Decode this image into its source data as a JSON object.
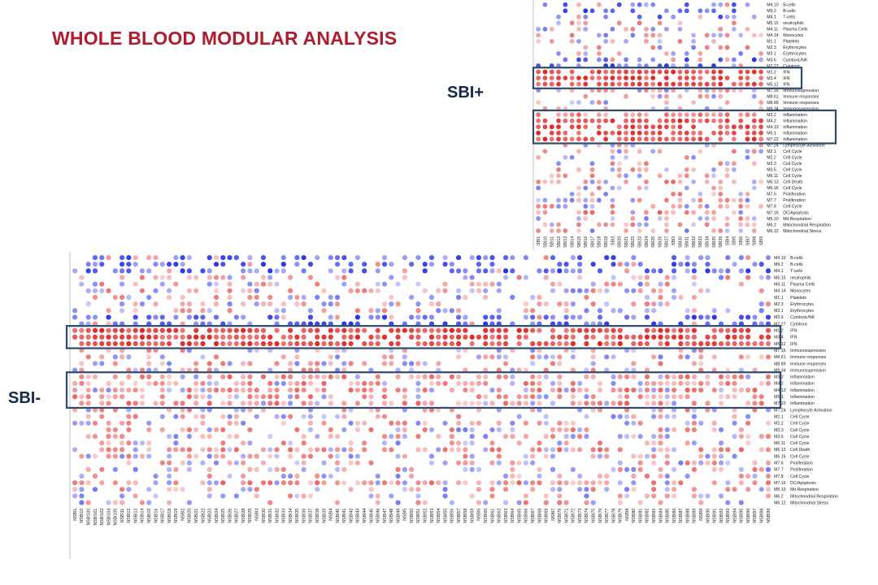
{
  "title": "WHOLE BLOOD MODULAR ANALYSIS",
  "sbi_plus_label": "SBI+",
  "sbi_minus_label": "SBI-",
  "colors": {
    "title": "#b01c2e",
    "label": "#16294a",
    "highlight_box": "#2f4a6e",
    "up": "#e03030",
    "down": "#3344dd"
  },
  "chart_data": [
    {
      "type": "heatmap",
      "name": "SBI+",
      "modules": [
        "M4.10",
        "M9.2",
        "M4.1",
        "M5.15",
        "M4.11",
        "M4.14",
        "M1.1",
        "M2.3",
        "M3.1",
        "M3.6",
        "M7.27",
        "M1.2",
        "M3.4",
        "M5.12",
        "M7.16",
        "M8.61",
        "M8.89",
        "M9.34",
        "M3.2",
        "M4.2",
        "M4.13",
        "M5.1",
        "M7.22",
        "M7.24",
        "M2.1",
        "M2.2",
        "M3.3",
        "M3.5",
        "M6.11",
        "M6.13",
        "M6.16",
        "M7.6",
        "M7.7",
        "M7.8",
        "M7.16",
        "M5.10",
        "M6.2",
        "M6.12"
      ],
      "functions": [
        "B-cells",
        "B-cells",
        "T-cells",
        "neutrophils",
        "Plasma Cells",
        "Monocytes",
        "Platelets",
        "Erythrocytes",
        "Erythrocytes",
        "Cytotoxic/NK",
        "Cytotoxic",
        "IFN",
        "IFN",
        "IFN",
        "Immunosupression",
        "Immune responses",
        "Immune responses",
        "Immunosupression",
        "Inflammation",
        "Inflammation",
        "Inflammation",
        "Inflammation",
        "Inflammation",
        "Lymphocyte Activation",
        "Cell Cycle",
        "Cell Cycle",
        "Cell Cycle",
        "Cell Cycle",
        "Cell Cycle",
        "Cell Death",
        "Cell Cycle",
        "Proliferation",
        "Proliferation",
        "Cell Cycle",
        "DC/Apoptosis",
        "Mit Respiration",
        "Mitochondrial Respiration",
        "Mitochondrial Stress"
      ],
      "samples": [
        "SBI1",
        "SBI10",
        "SBI11",
        "SBI12",
        "SBI13",
        "SBI14",
        "SBI15",
        "SBI16",
        "SBI17",
        "SBI18",
        "SBI19",
        "SBI2",
        "SBI20",
        "SBI21",
        "SBI22",
        "SBI23",
        "SBI24",
        "SBI25",
        "SBI26",
        "SBI27",
        "SBI3",
        "SBI30",
        "SBI31",
        "SBI32",
        "SBI33",
        "SBI34",
        "SBI35",
        "SBI36",
        "SBI4",
        "SBI5",
        "SBI6",
        "SBI7",
        "SBI8",
        "SBI9"
      ],
      "highlighted_groups": [
        "IFN",
        "Inflammation"
      ],
      "scale": "red = over-expressed, blue = under-expressed, white = no change"
    },
    {
      "type": "heatmap",
      "name": "SBI-",
      "modules": [
        "M4.10",
        "M9.2",
        "M4.1",
        "M5.15",
        "M4.11",
        "M4.14",
        "M1.1",
        "M2.3",
        "M3.1",
        "M3.6",
        "M7.27",
        "M1.2",
        "M3.4",
        "M5.12",
        "M7.16",
        "M8.61",
        "M8.89",
        "M9.34",
        "M3.2",
        "M4.2",
        "M4.13",
        "M5.1",
        "M7.22",
        "M7.24",
        "M2.1",
        "M2.2",
        "M3.3",
        "M3.5",
        "M6.11",
        "M6.13",
        "M6.16",
        "M7.6",
        "M7.7",
        "M7.8",
        "M7.16",
        "M5.10",
        "M6.2",
        "M6.12"
      ],
      "functions": [
        "B-cells",
        "B-cells",
        "T-cells",
        "neutrophils",
        "Plasma Cells",
        "Monocytes",
        "Platelets",
        "Erythrocytes",
        "Erythrocytes",
        "Cytotoxic/NK",
        "Cytotoxic",
        "IFN",
        "IFN",
        "IFN",
        "Immunosupression",
        "Immune responses",
        "Immune responses",
        "Immunosupression",
        "Inflammation",
        "Inflammation",
        "Inflammation",
        "Inflammation",
        "Inflammation",
        "Lymphocyte Activation",
        "Cell Cycle",
        "Cell Cycle",
        "Cell Cycle",
        "Cell Cycle",
        "Cell Cycle",
        "Cell Death",
        "Cell Cycle",
        "Proliferation",
        "Proliferation",
        "Cell Cycle",
        "DC/Apoptosis",
        "Mit Respiration",
        "Mitochondrial Respiration",
        "Mitochondrial Stress"
      ],
      "samples": [
        "NSBI1",
        "NSBI10",
        "NSBI100",
        "NSBI101",
        "NSBI102",
        "NSBI104",
        "NSBI105",
        "NSBI11",
        "NSBI12",
        "NSBI13",
        "NSBI14",
        "NSBI15",
        "NSBI16",
        "NSBI17",
        "NSBI18",
        "NSBI19",
        "NSBI2",
        "NSBI20",
        "NSBI21",
        "NSBI22",
        "NSBI23",
        "NSBI24",
        "NSBI25",
        "NSBI26",
        "NSBI27",
        "NSBI28",
        "NSBI29",
        "NSBI3",
        "NSBI30",
        "NSBI31",
        "NSBI32",
        "NSBI33",
        "NSBI34",
        "NSBI35",
        "NSBI36",
        "NSBI37",
        "NSBI38",
        "NSBI39",
        "NSBI4",
        "NSBI40",
        "NSBI41",
        "NSBI42",
        "NSBI43",
        "NSBI44",
        "NSBI45",
        "NSBI46",
        "NSBI47",
        "NSBI48",
        "NSBI49",
        "NSBI5",
        "NSBI50",
        "NSBI51",
        "NSBI52",
        "NSBI53",
        "NSBI54",
        "NSBI55",
        "NSBI56",
        "NSBI57",
        "NSBI58",
        "NSBI59",
        "NSBI6",
        "NSBI60",
        "NSBI61",
        "NSBI62",
        "NSBI63",
        "NSBI64",
        "NSBI65",
        "NSBI66",
        "NSBI67",
        "NSBI68",
        "NSBI69",
        "NSBI7",
        "NSBI70",
        "NSBI71",
        "NSBI72",
        "NSBI73",
        "NSBI74",
        "NSBI75",
        "NSBI76",
        "NSBI77",
        "NSBI78",
        "NSBI79",
        "NSBI8",
        "NSBI80",
        "NSBI81",
        "NSBI82",
        "NSBI83",
        "NSBI84",
        "NSBI85",
        "NSBI86",
        "NSBI87",
        "NSBI88",
        "NSBI89",
        "NSBI9",
        "NSBI90",
        "NSBI91",
        "NSBI92",
        "NSBI93",
        "NSBI94",
        "NSBI95",
        "NSBI96",
        "NSBI97",
        "NSBI98",
        "NSBI99"
      ],
      "highlighted_groups": [
        "IFN",
        "Inflammation"
      ],
      "scale": "red = over-expressed, blue = under-expressed, white = no change"
    }
  ]
}
